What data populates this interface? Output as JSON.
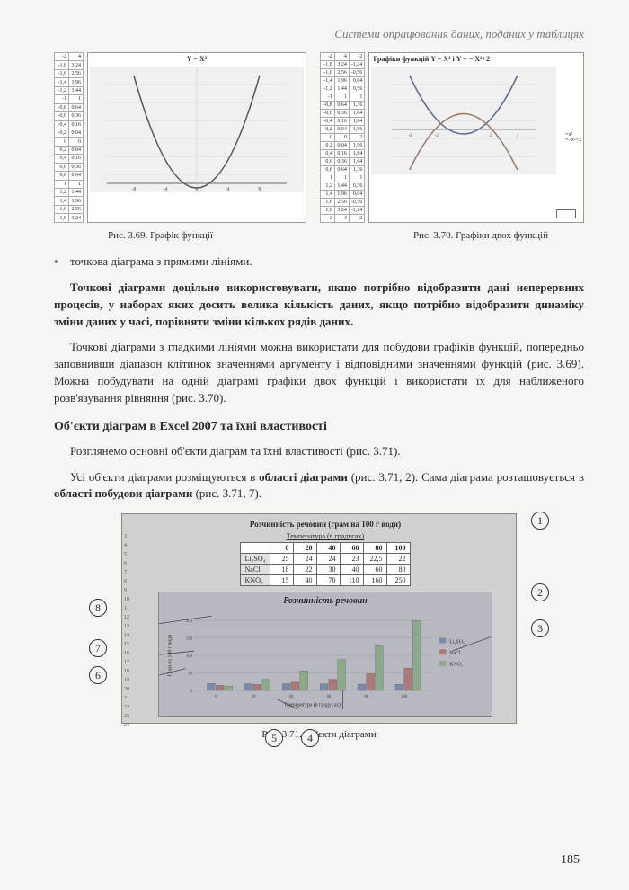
{
  "header": "Системи опрацювання даних, поданих у таблицях",
  "chart369": {
    "title": "Y = X²",
    "caption": "Рис. 3.69. Графік функції",
    "table": [
      [
        "-2",
        "4"
      ],
      [
        "-1.8",
        "3,24"
      ],
      [
        "-1,6",
        "2,56"
      ],
      [
        "-1,4",
        "1,96"
      ],
      [
        "-1,2",
        "1,44"
      ],
      [
        "-1",
        "1"
      ],
      [
        "-0,8",
        "0,64"
      ],
      [
        "-0,6",
        "0,36"
      ],
      [
        "-0,4",
        "0,16"
      ],
      [
        "-0,2",
        "0,04"
      ],
      [
        "0",
        "0"
      ],
      [
        "0,2",
        "0,04"
      ],
      [
        "0,4",
        "0,16"
      ],
      [
        "0,6",
        "0,36"
      ],
      [
        "0,8",
        "0,64"
      ],
      [
        "1",
        "1"
      ],
      [
        "1,2",
        "1,44"
      ],
      [
        "1,4",
        "1,96"
      ],
      [
        "1,6",
        "2,56"
      ],
      [
        "1,8",
        "3,24"
      ]
    ]
  },
  "chart370": {
    "title": "Графіки функцій Y = X² і Y = − X²+2",
    "caption": "Рис. 3.70. Графіки двох функцій",
    "legend": [
      "=x²",
      "=−x²+2"
    ],
    "table": [
      [
        "-2",
        "4",
        "-2"
      ],
      [
        "-1,8",
        "3,24",
        "-1,24"
      ],
      [
        "-1,6",
        "2,56",
        "-0,56"
      ],
      [
        "-1,4",
        "1,96",
        "0,04"
      ],
      [
        "-1,2",
        "1,44",
        "0,56"
      ],
      [
        "-1",
        "1",
        "1"
      ],
      [
        "-0,8",
        "0,64",
        "1,36"
      ],
      [
        "-0,6",
        "0,36",
        "1,64"
      ],
      [
        "-0,4",
        "0,16",
        "1,84"
      ],
      [
        "-0,2",
        "0,04",
        "1,96"
      ],
      [
        "0",
        "0",
        "2"
      ],
      [
        "0,2",
        "0,04",
        "1,96"
      ],
      [
        "0,4",
        "0,16",
        "1,84"
      ],
      [
        "0,6",
        "0,36",
        "1,64"
      ],
      [
        "0,8",
        "0,64",
        "1,36"
      ],
      [
        "1",
        "1",
        "1"
      ],
      [
        "1,2",
        "1,44",
        "0,56"
      ],
      [
        "1,4",
        "1,96",
        "0,04"
      ],
      [
        "1,6",
        "2,56",
        "-0,56"
      ],
      [
        "1,8",
        "3,24",
        "-1,24"
      ],
      [
        "2",
        "4",
        "-2"
      ]
    ]
  },
  "paragraphs": {
    "p1": "точкова діаграма з прямими лініями.",
    "p2a": "Точкові діаграми доцільно використовувати, якщо потрібно відобразити дані неперервних процесів, у наборах яких досить велика кількість даних, якщо потрібно відобразити динаміку зміни даних у часі, порівняти зміни кількох рядів даних.",
    "p3": "Точкові діаграми з гладкими лініями можна використати для побудови графіків функцій, попередньо заповнивши діапазон клітинок значеннями аргументу і відповідними значеннями функцій (рис. 3.69). Можна побудувати на одній діаграмі графіки двох функцій і використати їх для наближеного розв'язування рівняння (рис. 3.70).",
    "p4": "Розглянемо основні об'єкти діаграм та їхні властивості (рис. 3.71).",
    "p5a": "Усі об'єкти діаграми розміщуються в ",
    "p5b": "області діаграми",
    "p5c": " (рис. 3.71, 2). Сама діаграма розташовується в ",
    "p5d": "області побудови діаграми",
    "p5e": " (рис. 3.71, 7)."
  },
  "subheading": "Об'єкти діаграм в Excel 2007 та їхні властивості",
  "fig71": {
    "title": "Розчинність речовин (грам на 100 г води)",
    "subtitle": "Температура (в градусах)",
    "chart_title": "Розчинність речовин",
    "xaxis": "Температура (в градусах)",
    "yaxis": "Грам на 100 г води",
    "legend": [
      "Li₂SO₄",
      "NaCl",
      "KNO₃"
    ],
    "columns": [
      "0",
      "20",
      "40",
      "60",
      "80",
      "100"
    ],
    "rows": [
      [
        "Li₂SO₄",
        "25",
        "24",
        "24",
        "23",
        "22,5",
        "22"
      ],
      [
        "NaCl",
        "18",
        "22",
        "30",
        "40",
        "60",
        "80"
      ],
      [
        "KNO₃",
        "15",
        "40",
        "70",
        "110",
        "160",
        "250"
      ]
    ],
    "caption": "Рис. 3.71. Об'єкти діаграми",
    "markers": {
      "m1": "1",
      "m2": "2",
      "m3": "3",
      "m4": "4",
      "m5": "5",
      "m6": "6",
      "m7": "7",
      "m8": "8"
    }
  },
  "page_number": "185"
}
